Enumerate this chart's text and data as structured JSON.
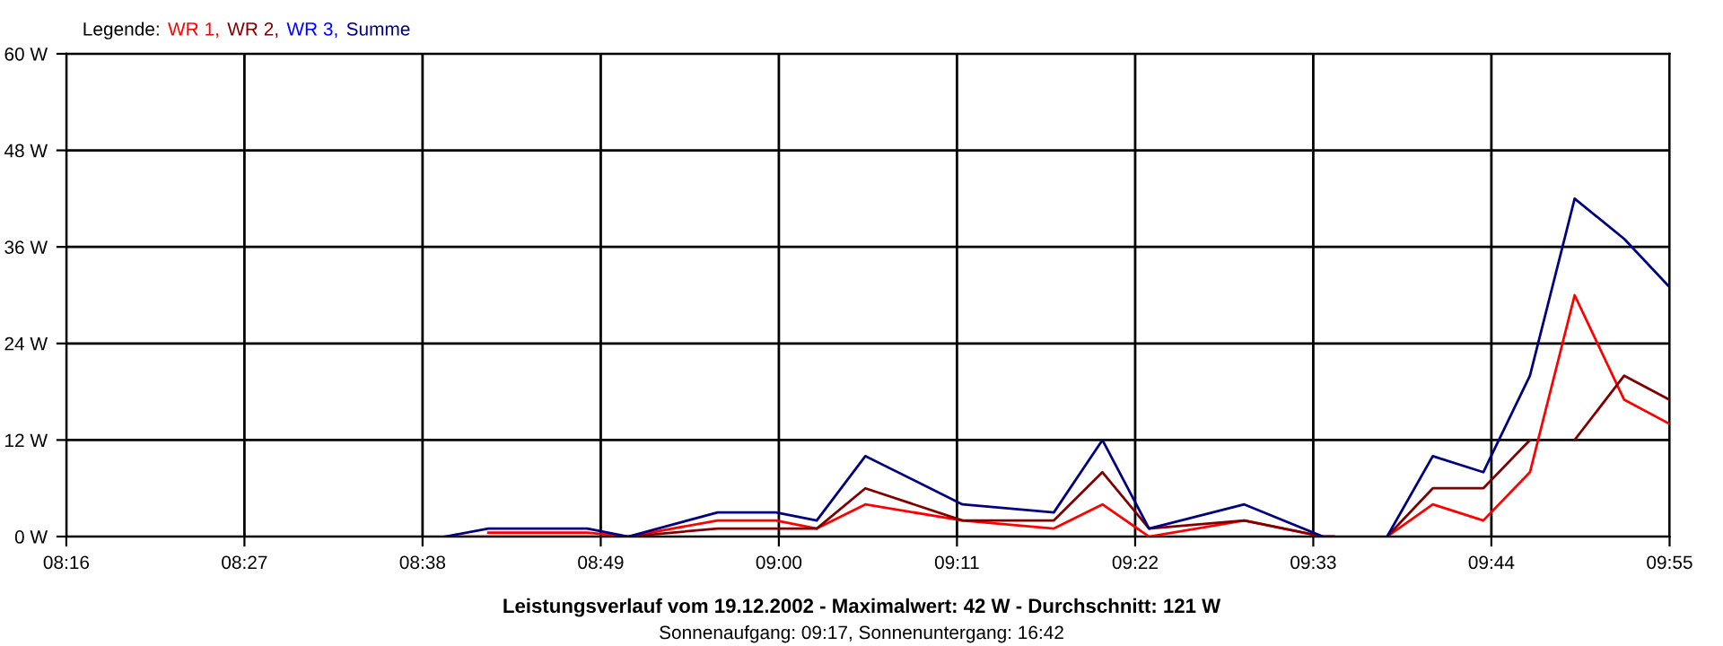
{
  "chart_data": {
    "type": "line",
    "title": "Leistungsverlauf vom 19.12.2002 - Maximalwert: 42 W - Durchschnitt: 121 W",
    "subtitle": "Sonnenaufgang: 09:17, Sonnenuntergang: 16:42",
    "legend_title": "Legende:",
    "x": [
      8.657,
      8.701,
      8.803,
      8.845,
      8.937,
      8.997,
      9.039,
      9.089,
      9.189,
      9.283,
      9.333,
      9.381,
      9.479,
      9.56,
      9.571,
      9.6,
      9.626,
      9.673,
      9.725,
      9.773,
      9.819,
      9.87,
      9.9167
    ],
    "series": [
      {
        "name": "WR 1,",
        "color": "#ff0000",
        "values": [
          null,
          0.5,
          0.5,
          0,
          2,
          2,
          1,
          4,
          2,
          1,
          4,
          0,
          2,
          0,
          0,
          null,
          0,
          4,
          2,
          8,
          30,
          17,
          14
        ]
      },
      {
        "name": "WR 2,",
        "color": "#800000",
        "x": [
          8.657,
          8.701,
          8.803,
          8.845,
          8.937,
          8.997,
          9.039,
          9.089,
          9.189,
          9.283,
          9.333,
          9.381,
          9.479,
          9.56,
          9.571,
          9.6,
          9.626,
          9.673,
          9.725,
          9.773,
          9.795,
          9.819,
          9.87,
          9.9167
        ],
        "values": [
          0,
          0,
          0,
          0,
          1,
          1,
          1,
          6,
          2,
          2,
          8,
          1,
          2,
          0,
          0,
          null,
          0,
          6,
          6,
          12,
          null,
          12,
          20,
          17
        ]
      },
      {
        "name": "WR 3,",
        "color": "#0000ff",
        "values": [
          null,
          null,
          null,
          null,
          null,
          null,
          null,
          null,
          null,
          null,
          null,
          null,
          null,
          null,
          null,
          null,
          null,
          null,
          null,
          null,
          null,
          null,
          null
        ]
      },
      {
        "name": "Summe",
        "color": "#000080",
        "values": [
          0,
          1,
          1,
          0,
          3,
          3,
          2,
          10,
          4,
          3,
          12,
          1,
          4,
          0,
          0,
          null,
          0,
          10,
          8,
          20,
          42,
          37,
          31
        ]
      }
    ],
    "xlim": [
      8.2667,
      9.9167
    ],
    "xticks": [
      {
        "value": 8.2667,
        "label": "08:16"
      },
      {
        "value": 8.45,
        "label": "08:27"
      },
      {
        "value": 8.6333,
        "label": "08:38"
      },
      {
        "value": 8.8167,
        "label": "08:49"
      },
      {
        "value": 9.0,
        "label": "09:00"
      },
      {
        "value": 9.1833,
        "label": "09:11"
      },
      {
        "value": 9.3667,
        "label": "09:22"
      },
      {
        "value": 9.55,
        "label": "09:33"
      },
      {
        "value": 9.7333,
        "label": "09:44"
      },
      {
        "value": 9.9167,
        "label": "09:55"
      }
    ],
    "ylim": [
      0,
      60
    ],
    "yticks": [
      {
        "value": 0,
        "label": "0 W"
      },
      {
        "value": 12,
        "label": "12 W"
      },
      {
        "value": 24,
        "label": "24 W"
      },
      {
        "value": 36,
        "label": "36 W"
      },
      {
        "value": 48,
        "label": "48 W"
      },
      {
        "value": 60,
        "label": "60 W"
      }
    ],
    "grid": true,
    "legend": "top left",
    "marker": "none",
    "line_style": "solid"
  }
}
